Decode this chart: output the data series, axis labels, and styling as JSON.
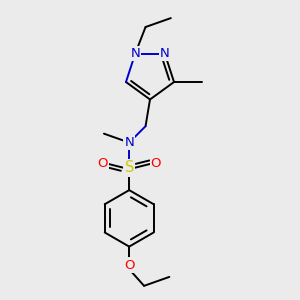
{
  "bg_color": "#ebebeb",
  "atom_colors": {
    "N": "#0000cc",
    "O": "#ff0000",
    "S": "#cccc00",
    "C": "#000000"
  },
  "lw": 1.4,
  "fs": 9.5
}
